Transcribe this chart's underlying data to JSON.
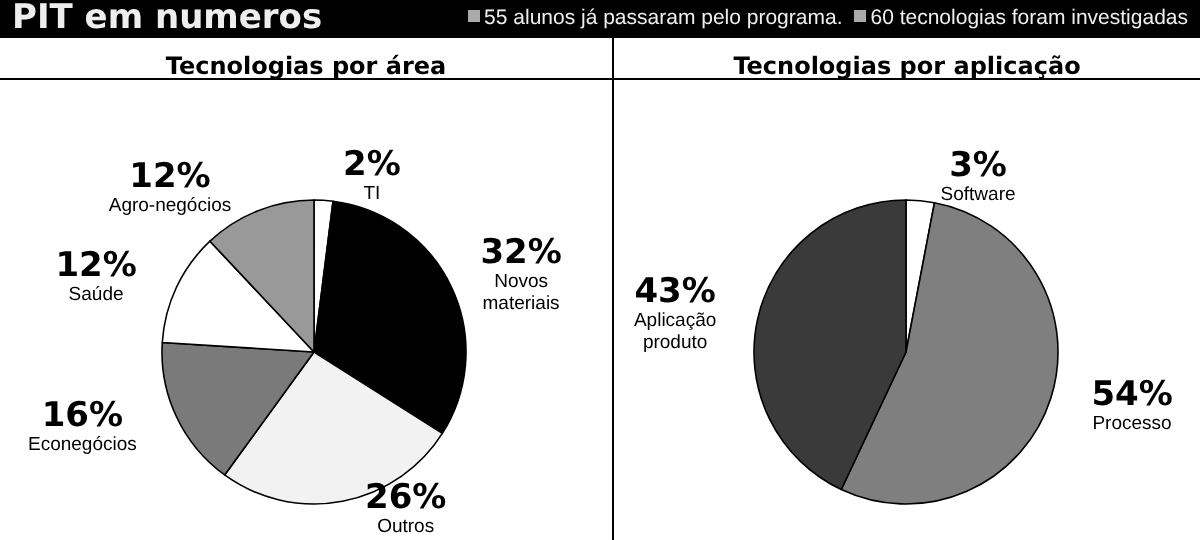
{
  "chart_data": [
    {
      "type": "other",
      "title": "PIT em numeros",
      "annotations": [
        "55 alunos já passaram pelo programa.",
        "60 tecnologias foram investigadas"
      ]
    },
    {
      "type": "pie",
      "title": "Tecnologias por área",
      "categories": [
        "TI",
        "Novos materiais",
        "Outros",
        "Econegócios",
        "Saúde",
        "Agro-negócios"
      ],
      "values": [
        2,
        32,
        26,
        16,
        12,
        12
      ],
      "colors": [
        "#ffffff",
        "#000000",
        "#f2f2f2",
        "#7a7a7a",
        "#ffffff",
        "#999999"
      ],
      "value_labels": [
        "2%",
        "32%",
        "26%",
        "16%",
        "12%",
        "12%"
      ]
    },
    {
      "type": "pie",
      "title": "Tecnologias por aplicação",
      "categories": [
        "Software",
        "Processo",
        "Aplicação produto"
      ],
      "values": [
        3,
        54,
        43
      ],
      "colors": [
        "#ffffff",
        "#7f7f7f",
        "#3a3a3a"
      ],
      "value_labels": [
        "3%",
        "54%",
        "43%"
      ]
    }
  ]
}
